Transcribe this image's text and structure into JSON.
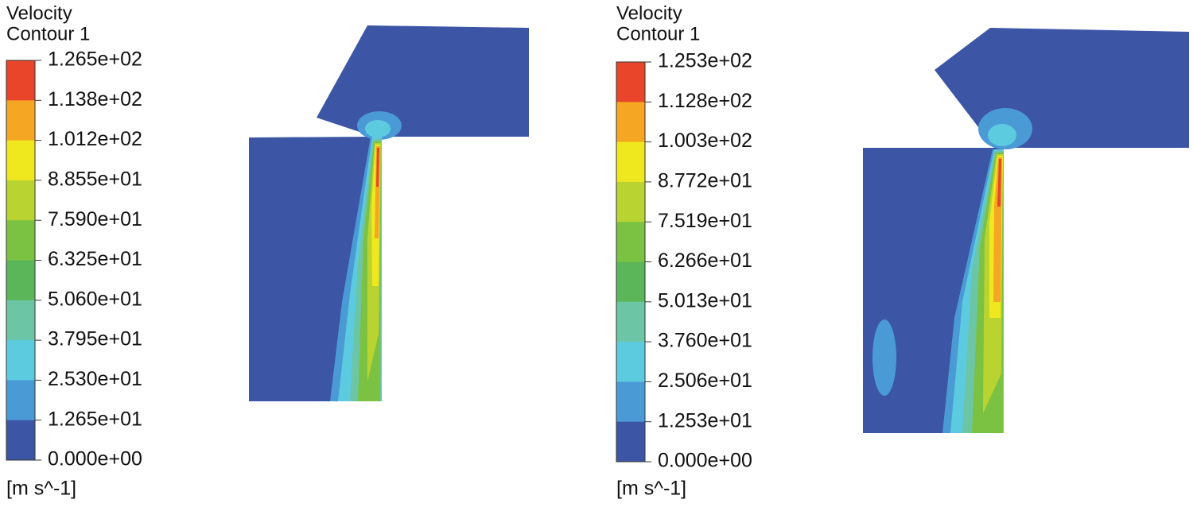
{
  "panels": [
    {
      "title": "Velocity",
      "subtitle": "Contour 1",
      "levels": [
        "1.265e+02",
        "1.138e+02",
        "1.012e+02",
        "8.855e+01",
        "7.590e+01",
        "6.325e+01",
        "5.060e+01",
        "3.795e+01",
        "2.530e+01",
        "1.265e+01",
        "0.000e+00"
      ],
      "unit": "[m s^-1]"
    },
    {
      "title": "Velocity",
      "subtitle": "Contour 1",
      "levels": [
        "1.253e+02",
        "1.128e+02",
        "1.003e+02",
        "8.772e+01",
        "7.519e+01",
        "6.266e+01",
        "5.013e+01",
        "3.760e+01",
        "2.506e+01",
        "1.253e+01",
        "0.000e+00"
      ],
      "unit": "[m s^-1]"
    }
  ]
}
